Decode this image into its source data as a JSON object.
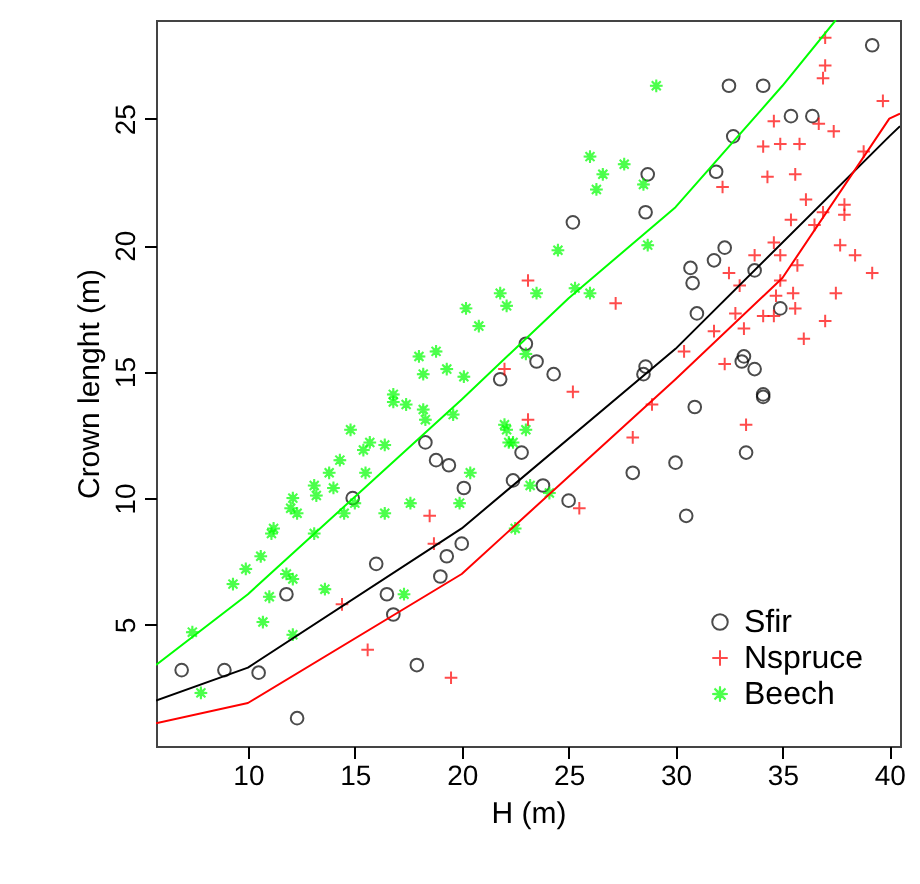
{
  "chart_data": {
    "type": "scatter",
    "xlabel": "H (m)",
    "ylabel": "Crown lenght (m)",
    "xlim": [
      5.7,
      40.5
    ],
    "ylim": [
      0.2,
      28.9
    ],
    "xticks": [
      10,
      15,
      20,
      25,
      30,
      35,
      40
    ],
    "yticks": [
      5,
      10,
      15,
      20,
      25
    ],
    "grid": false,
    "legend": "bottom right",
    "series": [
      {
        "name": "Sfir",
        "color": "#000000",
        "marker": "circle",
        "x": [
          6.9,
          8.9,
          10.5,
          12.3,
          11.8,
          14.9,
          16.0,
          16.5,
          16.8,
          17.9,
          18.3,
          18.8,
          19.4,
          19.0,
          19.3,
          20.0,
          20.1,
          21.8,
          22.4,
          25.2,
          28.7,
          28.6,
          23.0,
          23.5,
          24.3,
          30.7,
          30.8,
          31.8,
          32.3,
          31.0,
          31.9,
          32.7,
          32.5,
          34.1,
          35.4,
          36.4,
          33.7,
          34.9,
          28.6,
          28.5,
          33.2,
          33.1,
          33.7,
          34.1,
          39.2,
          30.9,
          34.1,
          33.3,
          28.0,
          30.0,
          30.5,
          23.8,
          25.0,
          22.8
        ],
        "values": [
          3.2,
          3.2,
          3.1,
          1.3,
          6.2,
          10.0,
          7.4,
          6.2,
          5.4,
          3.4,
          12.2,
          11.5,
          11.3,
          6.9,
          7.7,
          8.2,
          10.4,
          14.7,
          10.7,
          20.9,
          22.8,
          21.3,
          16.1,
          15.4,
          14.9,
          19.1,
          18.5,
          19.4,
          19.9,
          17.3,
          22.9,
          24.3,
          26.3,
          26.3,
          25.1,
          25.1,
          19.0,
          17.5,
          15.2,
          14.9,
          15.6,
          15.4,
          15.1,
          14.1,
          27.9,
          13.6,
          14.0,
          11.8,
          11.0,
          11.4,
          9.3,
          10.5,
          9.9,
          11.8
        ]
      },
      {
        "name": "Nspruce",
        "color": "#ff0000",
        "marker": "cross",
        "x": [
          14.4,
          15.6,
          18.5,
          18.7,
          19.5,
          25.2,
          28.9,
          28.0,
          33.3,
          23.1,
          25.5,
          22.0,
          23.1,
          27.2,
          37.0,
          37.0,
          36.9,
          39.7,
          34.6,
          34.1,
          34.9,
          35.8,
          36.7,
          37.4,
          38.8,
          32.2,
          34.3,
          35.6,
          36.1,
          36.9,
          37.9,
          37.9,
          35.4,
          36.5,
          33.7,
          34.6,
          34.9,
          37.7,
          38.4,
          39.2,
          32.5,
          33.0,
          34.9,
          35.7,
          34.7,
          35.5,
          37.5,
          35.6,
          32.8,
          33.2,
          34.1,
          34.6,
          37.0,
          31.8,
          36.0,
          30.4,
          32.3
        ],
        "values": [
          5.8,
          4.0,
          9.3,
          8.2,
          2.9,
          14.2,
          13.7,
          12.4,
          12.9,
          13.1,
          9.6,
          15.1,
          18.6,
          17.7,
          28.2,
          27.1,
          26.6,
          25.7,
          24.9,
          23.9,
          24.0,
          24.0,
          24.8,
          24.5,
          23.7,
          22.3,
          22.7,
          22.8,
          21.8,
          21.3,
          21.6,
          21.2,
          21.0,
          20.8,
          19.6,
          20.1,
          19.6,
          20.0,
          19.6,
          18.9,
          18.9,
          18.4,
          18.6,
          19.2,
          18.0,
          18.1,
          18.1,
          17.5,
          17.3,
          16.7,
          17.2,
          17.2,
          17.0,
          16.6,
          16.3,
          15.8,
          15.3
        ]
      },
      {
        "name": "Beech",
        "color": "#00ff00",
        "marker": "star",
        "x": [
          7.4,
          7.8,
          9.3,
          9.9,
          10.6,
          11.0,
          10.7,
          11.1,
          11.2,
          11.8,
          12.1,
          12.1,
          12.0,
          12.1,
          12.3,
          13.1,
          13.1,
          13.2,
          13.6,
          13.8,
          14.0,
          14.3,
          14.5,
          14.8,
          15.0,
          15.4,
          15.5,
          15.7,
          16.4,
          16.4,
          16.8,
          17.3,
          17.4,
          17.6,
          18.2,
          18.3,
          19.6,
          19.9,
          20.4,
          22.0,
          22.4,
          22.5,
          21.8,
          22.1,
          20.2,
          20.8,
          18.0,
          18.8,
          18.2,
          19.3,
          20.1,
          16.8,
          29.1,
          26.0,
          26.6,
          27.6,
          26.3,
          28.5,
          24.5,
          28.7,
          25.3,
          26.0,
          23.5,
          23.0,
          22.1,
          22.2,
          23.0,
          23.2,
          24.1
        ],
        "values": [
          4.7,
          2.3,
          6.6,
          7.2,
          7.7,
          6.1,
          5.1,
          8.6,
          8.8,
          7.0,
          6.8,
          4.6,
          9.6,
          10.0,
          9.4,
          8.6,
          10.5,
          10.1,
          6.4,
          11.0,
          10.4,
          11.5,
          9.4,
          12.7,
          9.8,
          11.9,
          11.0,
          12.2,
          12.1,
          9.4,
          13.8,
          6.2,
          13.7,
          9.8,
          13.5,
          13.1,
          13.3,
          9.8,
          11.0,
          12.9,
          12.2,
          8.8,
          18.1,
          17.6,
          17.5,
          16.8,
          15.6,
          15.8,
          14.9,
          15.1,
          14.8,
          14.1,
          26.3,
          23.5,
          22.8,
          23.2,
          22.2,
          22.4,
          19.8,
          20.0,
          18.3,
          18.1,
          18.1,
          15.7,
          12.7,
          12.2,
          12.7,
          10.5,
          10.2
        ]
      },
      {
        "type": "line",
        "color": "#000000",
        "x": [
          5.7,
          10,
          20,
          30,
          40,
          40.5
        ],
        "values": [
          2.0,
          3.3,
          8.8,
          15.9,
          24.3,
          24.7
        ]
      },
      {
        "type": "line",
        "color": "#ff0000",
        "x": [
          5.7,
          10,
          20,
          30,
          35,
          40,
          40.5
        ],
        "values": [
          1.1,
          1.9,
          7.0,
          14.7,
          18.7,
          25.0,
          25.2
        ]
      },
      {
        "type": "line",
        "color": "#00ff00",
        "x": [
          5.7,
          10,
          20,
          25,
          30,
          35,
          37.5
        ],
        "values": [
          3.4,
          6.2,
          13.9,
          17.9,
          21.5,
          26.3,
          28.9
        ]
      }
    ]
  }
}
